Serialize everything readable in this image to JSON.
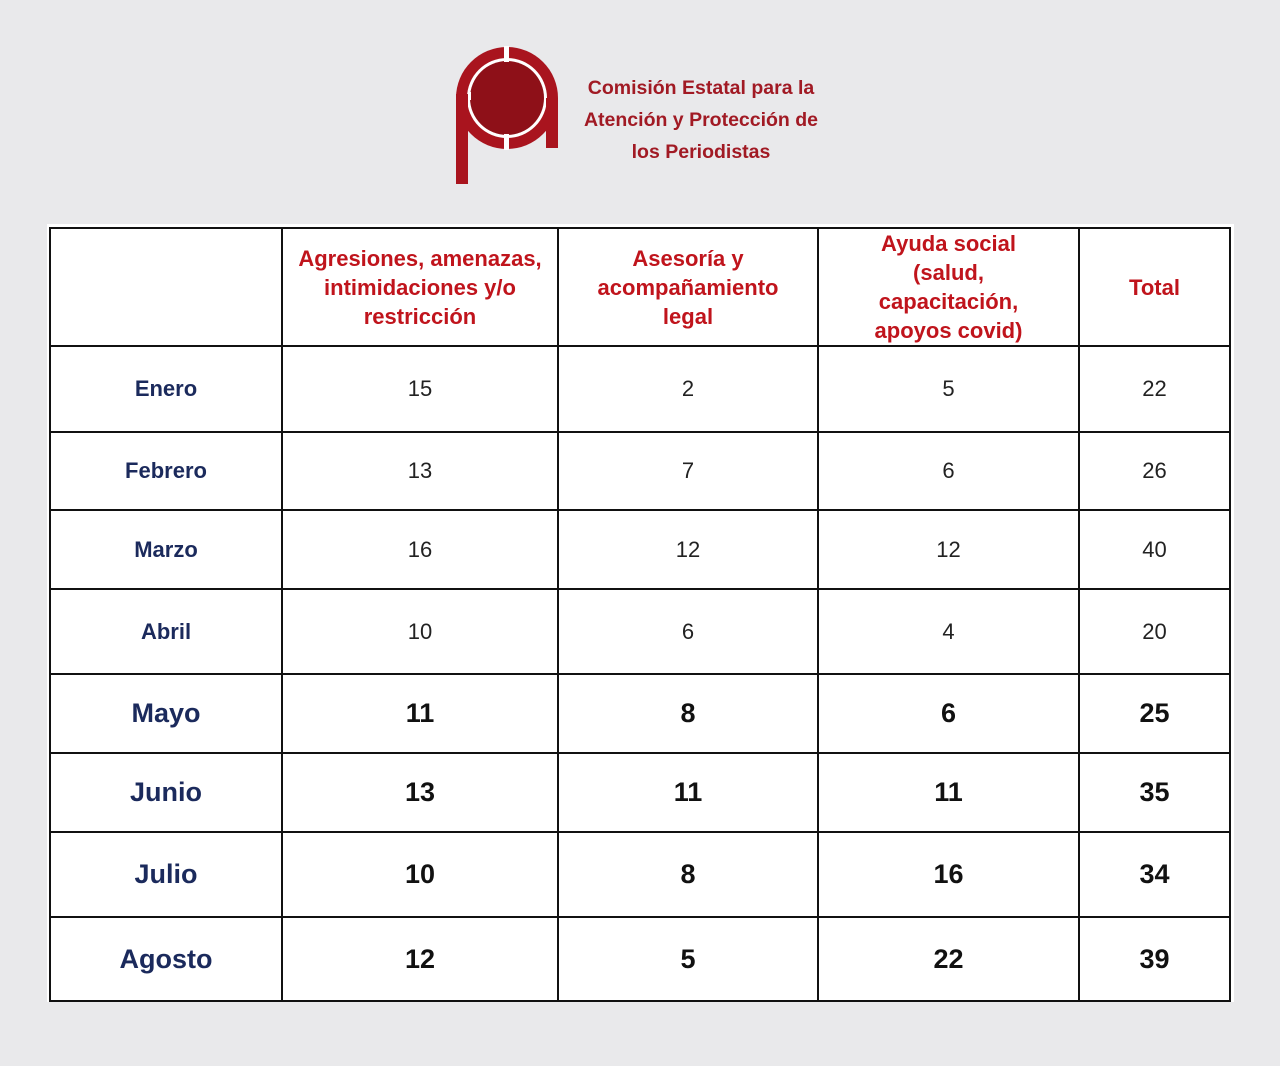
{
  "header": {
    "org_line1": "Comisión Estatal para la",
    "org_line2": "Atención y Protección de",
    "org_line3": "los Periodistas",
    "brand_color": "#a11a24"
  },
  "table": {
    "columns": [
      "",
      "Agresiones, amenazas, intimidaciones y/o restricción",
      "Asesoría y acompañamiento legal",
      "Ayuda social (salud, capacitación, apoyos covid)",
      "Total"
    ],
    "rows": [
      {
        "month": "Enero",
        "agresiones": "15",
        "asesoria": "2",
        "ayuda": "5",
        "total": "22"
      },
      {
        "month": "Febrero",
        "agresiones": "13",
        "asesoria": "7",
        "ayuda": "6",
        "total": "26"
      },
      {
        "month": "Marzo",
        "agresiones": "16",
        "asesoria": "12",
        "ayuda": "12",
        "total": "40"
      },
      {
        "month": "Abril",
        "agresiones": "10",
        "asesoria": "6",
        "ayuda": "4",
        "total": "20"
      },
      {
        "month": "Mayo",
        "agresiones": "11",
        "asesoria": "8",
        "ayuda": "6",
        "total": "25"
      },
      {
        "month": "Junio",
        "agresiones": "13",
        "asesoria": "11",
        "ayuda": "11",
        "total": "35"
      },
      {
        "month": "Julio",
        "agresiones": "10",
        "asesoria": "8",
        "ayuda": "16",
        "total": "34"
      },
      {
        "month": "Agosto",
        "agresiones": "12",
        "asesoria": "5",
        "ayuda": "22",
        "total": "39"
      }
    ]
  }
}
